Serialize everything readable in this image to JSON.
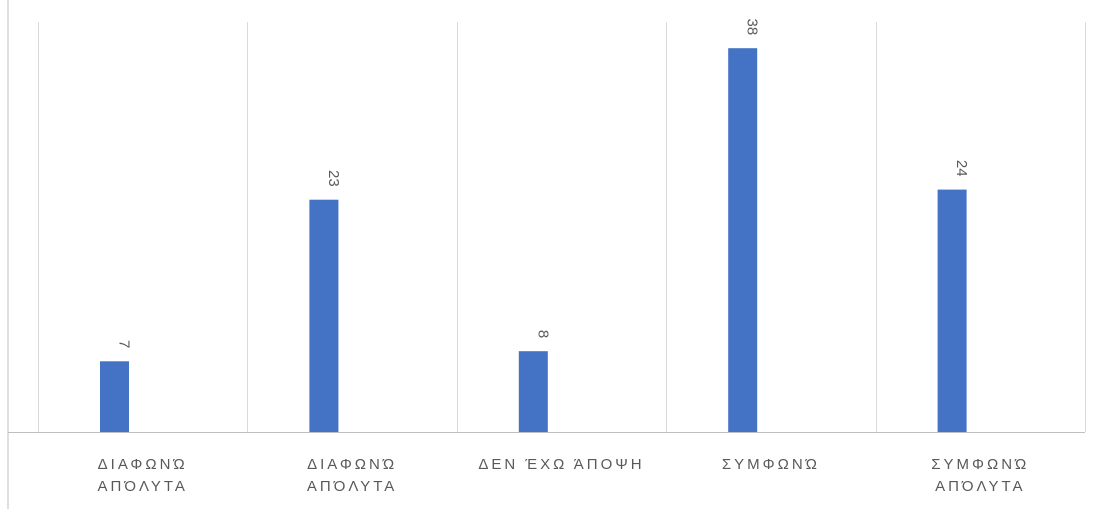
{
  "chart_data": {
    "type": "bar",
    "categories": [
      [
        "ΔΙΑΦΩΝΏ",
        "ΑΠΌΛΥΤΑ"
      ],
      [
        "ΔΙΑΦΩΝΏ",
        "ΑΠΌΛΥΤΑ"
      ],
      [
        "ΔΕΝ ΈΧΩ ΆΠΟΨΗ"
      ],
      [
        "ΣΥΜΦΩΝΏ"
      ],
      [
        "ΣΥΜΦΩΝΏ",
        "ΑΠΌΛΥΤΑ"
      ]
    ],
    "values": [
      7,
      23,
      8,
      38,
      24
    ],
    "data_labels": [
      "7",
      "23",
      "8",
      "38",
      "24"
    ],
    "title": "",
    "xlabel": "",
    "ylabel": "",
    "ylim": [
      0,
      40
    ],
    "grid": "vertical category separators",
    "legend": "none",
    "colors": {
      "bar": "#4472C4",
      "grid": "#D9D9D9",
      "axis": "#BFBFBF",
      "text": "#595959"
    }
  }
}
